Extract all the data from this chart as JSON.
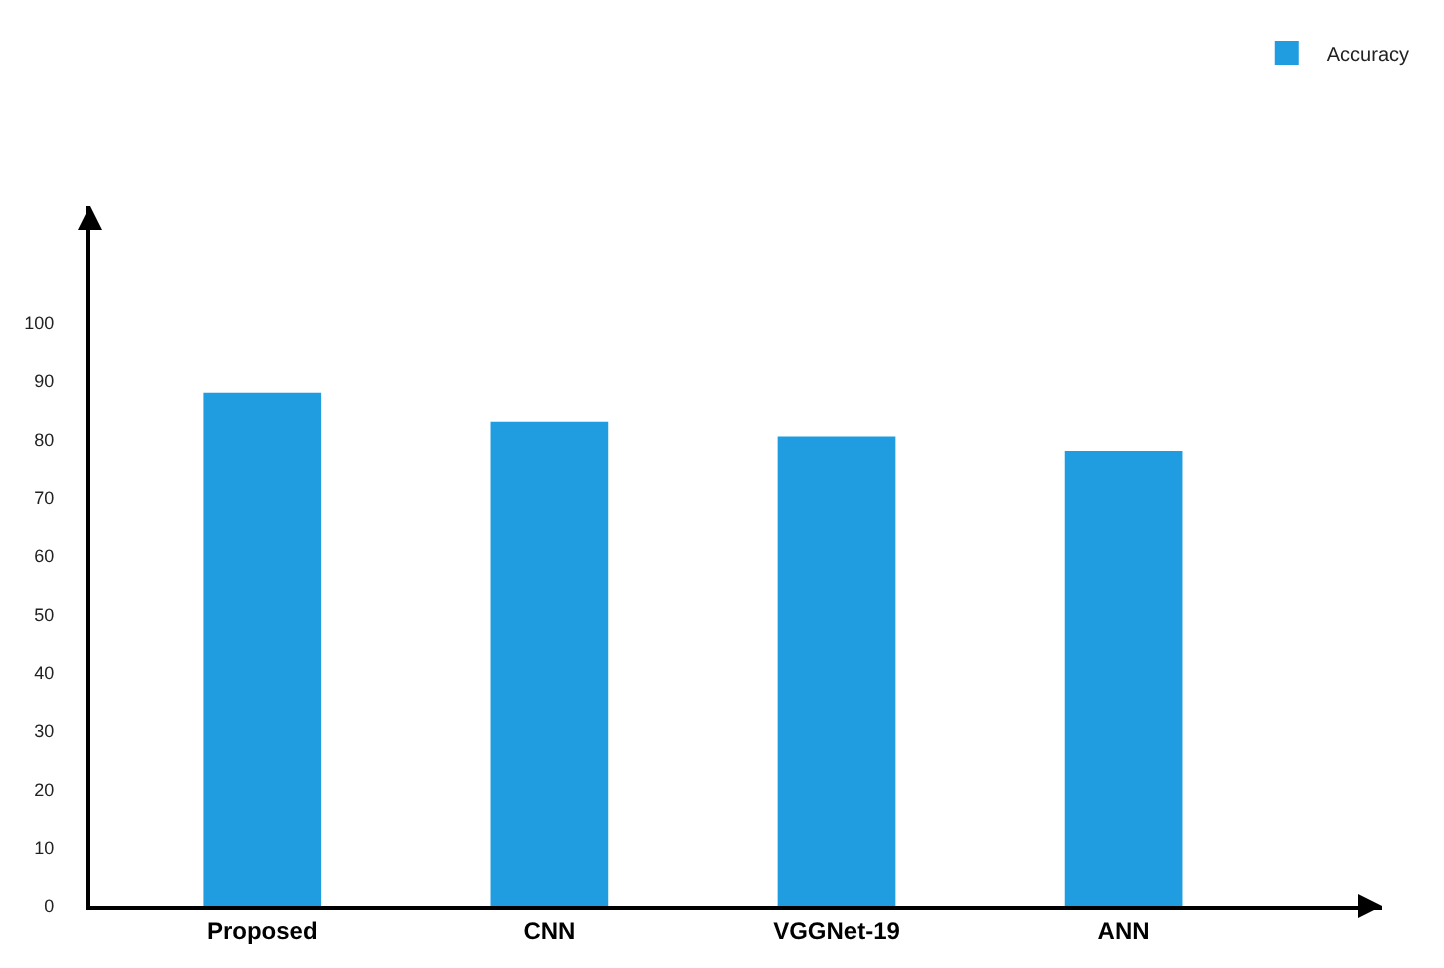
{
  "chart_data": {
    "type": "bar",
    "categories": [
      "Proposed",
      "CNN",
      "VGGNet-19",
      "ANN"
    ],
    "series": [
      {
        "name": "Accuracy",
        "color": "#1f9de0",
        "values": [
          88,
          83,
          80.5,
          78
        ]
      }
    ],
    "ylim": [
      0,
      120
    ],
    "yticks": [
      0,
      10,
      20,
      30,
      40,
      50,
      60,
      70,
      80,
      90,
      100
    ],
    "legend": "top right"
  }
}
